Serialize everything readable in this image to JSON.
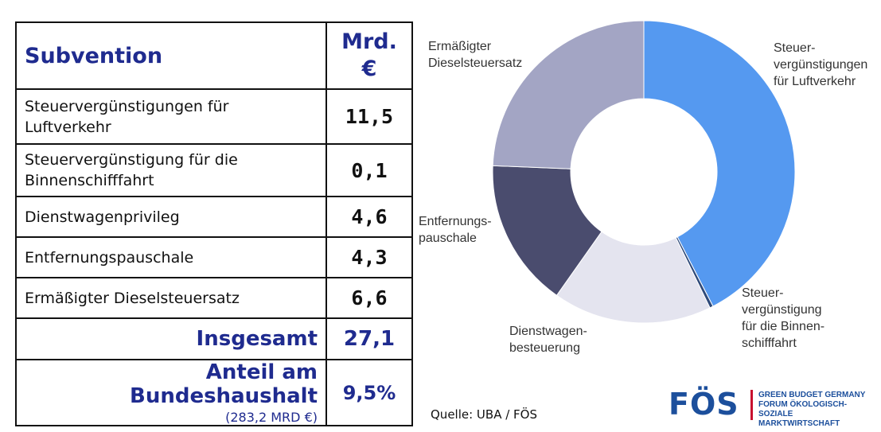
{
  "table": {
    "header_label": "Subvention",
    "header_unit_line1": "Mrd.",
    "header_unit_line2": "€",
    "rows": [
      {
        "label_line1": "Steuervergünstigungen für",
        "label_line2": "Luftverkehr",
        "value": "11,5"
      },
      {
        "label_line1": "Steuervergünstigung für die",
        "label_line2": "Binnenschifffahrt",
        "value": "0,1"
      },
      {
        "label_line1": "Dienstwagenprivileg",
        "label_line2": "",
        "value": "4,6"
      },
      {
        "label_line1": "Entfernungspauschale",
        "label_line2": "",
        "value": "4,3"
      },
      {
        "label_line1": "Ermäßigter Dieselsteuersatz",
        "label_line2": "",
        "value": "6,6"
      }
    ],
    "total_label": "Insgesamt",
    "total_value": "27,1",
    "share_label": "Anteil am Bundeshaushalt",
    "share_sublabel": "(283,2 MRD €)",
    "share_value": "9,5%"
  },
  "chart_data": {
    "type": "pie",
    "donut": true,
    "slices": [
      {
        "label": [
          "Steuer-",
          "vergünstigungen",
          "für Luftverkehr"
        ],
        "value": 11.5,
        "color": "#5599f0"
      },
      {
        "label": [
          "Steuer-",
          "vergünstigung",
          "für die Binnen-",
          "schifffahrt"
        ],
        "value": 0.1,
        "color": "#2f4a7a"
      },
      {
        "label": [
          "Dienstwagen-",
          "besteuerung"
        ],
        "value": 4.6,
        "color": "#e4e4ef"
      },
      {
        "label": [
          "Entfernungs-",
          "pauschale"
        ],
        "value": 4.3,
        "color": "#4a4c6e"
      },
      {
        "label": [
          "Ermäßigter",
          "Dieselsteuersatz"
        ],
        "value": 6.6,
        "color": "#a3a5c4"
      }
    ],
    "start_angle_deg": 0,
    "direction": "clockwise"
  },
  "source": "Quelle: UBA / FÖS",
  "logo": {
    "mark": "FÖS",
    "line1": "GREEN BUDGET GERMANY",
    "line2": "FORUM ÖKOLOGISCH-SOZIALE",
    "line3": "MARKTWIRTSCHAFT",
    "color": "#1c4f9c",
    "accent": "#c8102e"
  }
}
